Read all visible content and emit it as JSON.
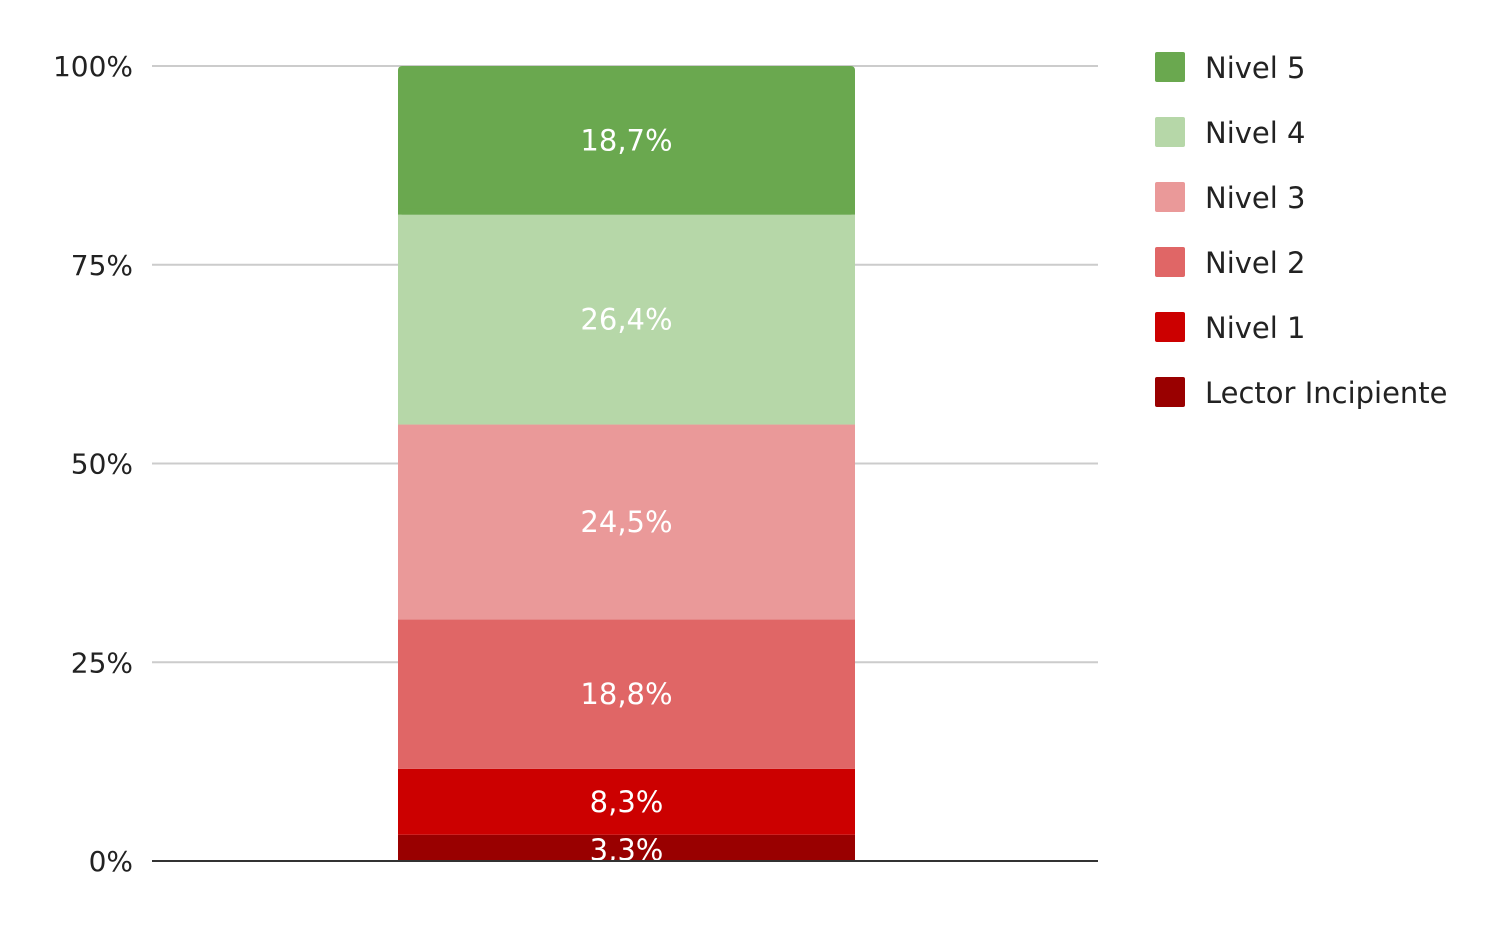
{
  "chart_data": {
    "type": "bar",
    "stacked": true,
    "percent": true,
    "categories": [
      ""
    ],
    "series": [
      {
        "name": "Lector Incipiente",
        "values": [
          3.3
        ],
        "label": "3,3%",
        "color": "#990000"
      },
      {
        "name": "Nivel 1",
        "values": [
          8.3
        ],
        "label": "8,3%",
        "color": "#cc0000"
      },
      {
        "name": "Nivel 2",
        "values": [
          18.8
        ],
        "label": "18,8%",
        "color": "#e06666"
      },
      {
        "name": "Nivel 3",
        "values": [
          24.5
        ],
        "label": "24,5%",
        "color": "#ea9999"
      },
      {
        "name": "Nivel 4",
        "values": [
          26.4
        ],
        "label": "26,4%",
        "color": "#b6d7a8"
      },
      {
        "name": "Nivel 5",
        "values": [
          18.7
        ],
        "label": "18,7%",
        "color": "#6aa84f"
      }
    ],
    "ylim": [
      0,
      100
    ],
    "yticks": [
      0,
      25,
      50,
      75,
      100
    ],
    "ytick_labels": [
      "0%",
      "25%",
      "50%",
      "75%",
      "100%"
    ],
    "grid": true,
    "legend_position": "right",
    "legend_order": [
      "Nivel 5",
      "Nivel 4",
      "Nivel 3",
      "Nivel 2",
      "Nivel 1",
      "Lector Incipiente"
    ]
  }
}
